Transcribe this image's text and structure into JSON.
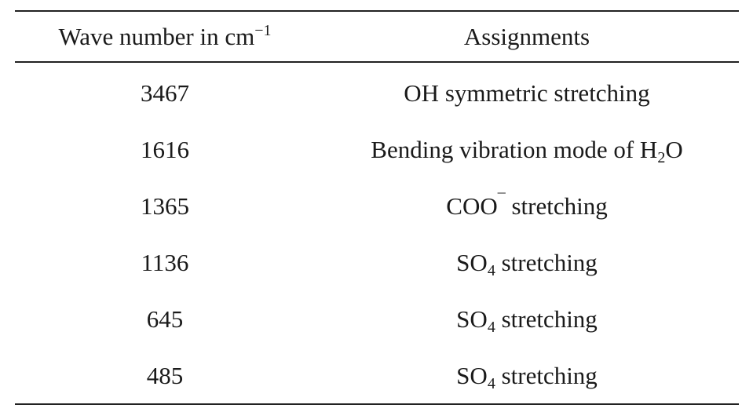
{
  "table": {
    "headers": {
      "wave_number": {
        "text": "Wave number in cm",
        "sup": "−1"
      },
      "assignments": {
        "text": "Assignments"
      }
    },
    "rows": [
      {
        "wave": "3467",
        "assignment": {
          "before": "OH symmetric stretching",
          "script": "",
          "script_type": "",
          "after": ""
        }
      },
      {
        "wave": "1616",
        "assignment": {
          "before": "Bending vibration mode of H",
          "script": "2",
          "script_type": "sub",
          "after": "O"
        }
      },
      {
        "wave": "1365",
        "assignment": {
          "before": "COO",
          "script": "¯",
          "script_type": "sup",
          "after": " stretching"
        }
      },
      {
        "wave": "1136",
        "assignment": {
          "before": "SO",
          "script": "4",
          "script_type": "sub",
          "after": " stretching"
        }
      },
      {
        "wave": "645",
        "assignment": {
          "before": "SO",
          "script": "4",
          "script_type": "sub",
          "after": " stretching"
        }
      },
      {
        "wave": "485",
        "assignment": {
          "before": "SO",
          "script": "4",
          "script_type": "sub",
          "after": " stretching"
        }
      }
    ]
  }
}
